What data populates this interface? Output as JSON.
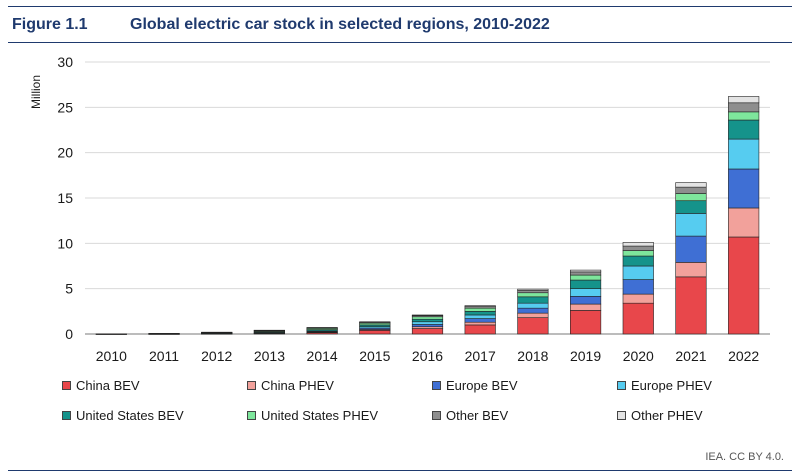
{
  "figure": {
    "number": "Figure 1.1",
    "title": "Global electric car stock in selected regions, 2010-2022"
  },
  "source": "IEA. CC BY 4.0.",
  "chart_data": {
    "type": "bar",
    "stacked": true,
    "title": "Global electric car stock in selected regions, 2010-2022",
    "xlabel": "",
    "ylabel": "Million",
    "ylim": [
      0,
      30
    ],
    "yticks": [
      0,
      5,
      10,
      15,
      20,
      25,
      30
    ],
    "grid": true,
    "legend_position": "bottom",
    "categories": [
      "2010",
      "2011",
      "2012",
      "2013",
      "2014",
      "2015",
      "2016",
      "2017",
      "2018",
      "2019",
      "2020",
      "2021",
      "2022"
    ],
    "series": [
      {
        "name": "China BEV",
        "color": "#e8474b",
        "values": [
          0.01,
          0.02,
          0.04,
          0.07,
          0.15,
          0.4,
          0.6,
          1.0,
          1.8,
          2.6,
          3.4,
          6.3,
          10.7
        ]
      },
      {
        "name": "China PHEV",
        "color": "#f2a19b",
        "values": [
          0.0,
          0.0,
          0.01,
          0.02,
          0.05,
          0.1,
          0.2,
          0.3,
          0.5,
          0.7,
          1.0,
          1.6,
          3.2
        ]
      },
      {
        "name": "Europe BEV",
        "color": "#3f6fd4",
        "values": [
          0.0,
          0.01,
          0.02,
          0.05,
          0.08,
          0.15,
          0.25,
          0.4,
          0.55,
          0.85,
          1.6,
          2.9,
          4.3
        ]
      },
      {
        "name": "Europe PHEV",
        "color": "#56ccf0",
        "values": [
          0.0,
          0.0,
          0.01,
          0.03,
          0.06,
          0.15,
          0.3,
          0.4,
          0.55,
          0.85,
          1.5,
          2.5,
          3.3
        ]
      },
      {
        "name": "United States BEV",
        "color": "#15938b",
        "values": [
          0.0,
          0.01,
          0.03,
          0.08,
          0.14,
          0.2,
          0.28,
          0.4,
          0.7,
          0.95,
          1.1,
          1.4,
          2.1
        ]
      },
      {
        "name": "United States PHEV",
        "color": "#7ee69c",
        "values": [
          0.0,
          0.01,
          0.05,
          0.1,
          0.15,
          0.2,
          0.27,
          0.35,
          0.45,
          0.55,
          0.6,
          0.8,
          0.9
        ]
      },
      {
        "name": "Other BEV",
        "color": "#8e8e8e",
        "values": [
          0.01,
          0.02,
          0.03,
          0.05,
          0.06,
          0.1,
          0.14,
          0.18,
          0.25,
          0.35,
          0.5,
          0.7,
          1.0
        ]
      },
      {
        "name": "Other PHEV",
        "color": "#e3e3e3",
        "values": [
          0.0,
          0.0,
          0.01,
          0.02,
          0.03,
          0.05,
          0.06,
          0.1,
          0.15,
          0.2,
          0.4,
          0.5,
          0.7
        ]
      }
    ]
  }
}
